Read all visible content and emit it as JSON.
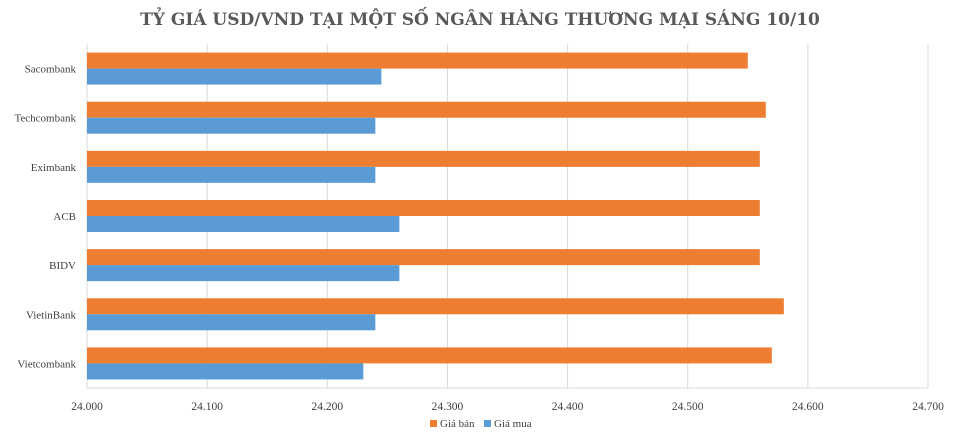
{
  "chart_data": {
    "type": "bar",
    "orientation": "horizontal",
    "title": "TỶ GIÁ USD/VND TẠI MỘT SỐ NGÂN HÀNG THƯƠNG MẠI SÁNG 10/10",
    "categories": [
      "Sacombank",
      "Techcombank",
      "Eximbank",
      "ACB",
      "BIDV",
      "VietinBank",
      "Vietcombank"
    ],
    "series": [
      {
        "name": "Giá bán",
        "color": "#ED7D31",
        "values": [
          24550,
          24565,
          24560,
          24560,
          24560,
          24580,
          24570
        ]
      },
      {
        "name": "Giá mua",
        "color": "#5B9BD5",
        "values": [
          24245,
          24240,
          24240,
          24260,
          24260,
          24240,
          24230
        ]
      }
    ],
    "xlim": [
      24000,
      24700
    ],
    "xticks": [
      24000,
      24100,
      24200,
      24300,
      24400,
      24500,
      24600,
      24700
    ],
    "xtick_labels": [
      "24.000",
      "24.100",
      "24.200",
      "24.300",
      "24.400",
      "24.500",
      "24.600",
      "24.700"
    ],
    "grid": true,
    "legend_position": "bottom"
  }
}
